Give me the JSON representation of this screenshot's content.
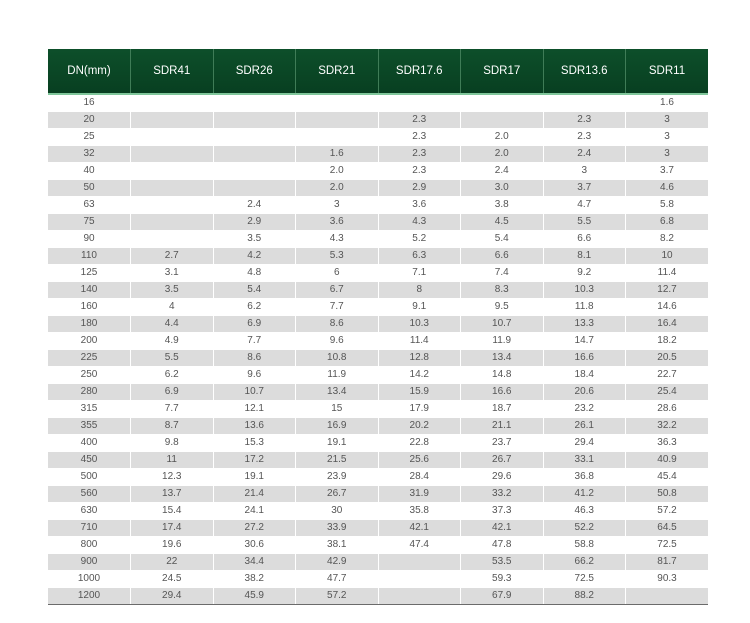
{
  "table": {
    "headers": [
      "DN(mm)",
      "SDR41",
      "SDR26",
      "SDR21",
      "SDR17.6",
      "SDR17",
      "SDR13.6",
      "SDR11"
    ],
    "rows": [
      [
        "16",
        "",
        "",
        "",
        "",
        "",
        "",
        "1.6"
      ],
      [
        "20",
        "",
        "",
        "",
        "2.3",
        "",
        "2.3",
        "3"
      ],
      [
        "25",
        "",
        "",
        "",
        "2.3",
        "2.0",
        "2.3",
        "3"
      ],
      [
        "32",
        "",
        "",
        "1.6",
        "2.3",
        "2.0",
        "2.4",
        "3"
      ],
      [
        "40",
        "",
        "",
        "2.0",
        "2.3",
        "2.4",
        "3",
        "3.7"
      ],
      [
        "50",
        "",
        "",
        "2.0",
        "2.9",
        "3.0",
        "3.7",
        "4.6"
      ],
      [
        "63",
        "",
        "2.4",
        "3",
        "3.6",
        "3.8",
        "4.7",
        "5.8"
      ],
      [
        "75",
        "",
        "2.9",
        "3.6",
        "4.3",
        "4.5",
        "5.5",
        "6.8"
      ],
      [
        "90",
        "",
        "3.5",
        "4.3",
        "5.2",
        "5.4",
        "6.6",
        "8.2"
      ],
      [
        "110",
        "2.7",
        "4.2",
        "5.3",
        "6.3",
        "6.6",
        "8.1",
        "10"
      ],
      [
        "125",
        "3.1",
        "4.8",
        "6",
        "7.1",
        "7.4",
        "9.2",
        "11.4"
      ],
      [
        "140",
        "3.5",
        "5.4",
        "6.7",
        "8",
        "8.3",
        "10.3",
        "12.7"
      ],
      [
        "160",
        "4",
        "6.2",
        "7.7",
        "9.1",
        "9.5",
        "11.8",
        "14.6"
      ],
      [
        "180",
        "4.4",
        "6.9",
        "8.6",
        "10.3",
        "10.7",
        "13.3",
        "16.4"
      ],
      [
        "200",
        "4.9",
        "7.7",
        "9.6",
        "11.4",
        "11.9",
        "14.7",
        "18.2"
      ],
      [
        "225",
        "5.5",
        "8.6",
        "10.8",
        "12.8",
        "13.4",
        "16.6",
        "20.5"
      ],
      [
        "250",
        "6.2",
        "9.6",
        "11.9",
        "14.2",
        "14.8",
        "18.4",
        "22.7"
      ],
      [
        "280",
        "6.9",
        "10.7",
        "13.4",
        "15.9",
        "16.6",
        "20.6",
        "25.4"
      ],
      [
        "315",
        "7.7",
        "12.1",
        "15",
        "17.9",
        "18.7",
        "23.2",
        "28.6"
      ],
      [
        "355",
        "8.7",
        "13.6",
        "16.9",
        "20.2",
        "21.1",
        "26.1",
        "32.2"
      ],
      [
        "400",
        "9.8",
        "15.3",
        "19.1",
        "22.8",
        "23.7",
        "29.4",
        "36.3"
      ],
      [
        "450",
        "11",
        "17.2",
        "21.5",
        "25.6",
        "26.7",
        "33.1",
        "40.9"
      ],
      [
        "500",
        "12.3",
        "19.1",
        "23.9",
        "28.4",
        "29.6",
        "36.8",
        "45.4"
      ],
      [
        "560",
        "13.7",
        "21.4",
        "26.7",
        "31.9",
        "33.2",
        "41.2",
        "50.8"
      ],
      [
        "630",
        "15.4",
        "24.1",
        "30",
        "35.8",
        "37.3",
        "46.3",
        "57.2"
      ],
      [
        "710",
        "17.4",
        "27.2",
        "33.9",
        "42.1",
        "42.1",
        "52.2",
        "64.5"
      ],
      [
        "800",
        "19.6",
        "30.6",
        "38.1",
        "47.4",
        "47.8",
        "58.8",
        "72.5"
      ],
      [
        "900",
        "22",
        "34.4",
        "42.9",
        "",
        "53.5",
        "66.2",
        "81.7"
      ],
      [
        "1000",
        "24.5",
        "38.2",
        "47.7",
        "",
        "59.3",
        "72.5",
        "90.3"
      ],
      [
        "1200",
        "29.4",
        "45.9",
        "57.2",
        "",
        "67.9",
        "88.2",
        ""
      ]
    ]
  },
  "colors": {
    "header_bg": "#0d4f2a",
    "header_accent": "#7fc69a",
    "stripe": "#dcdcdc"
  }
}
